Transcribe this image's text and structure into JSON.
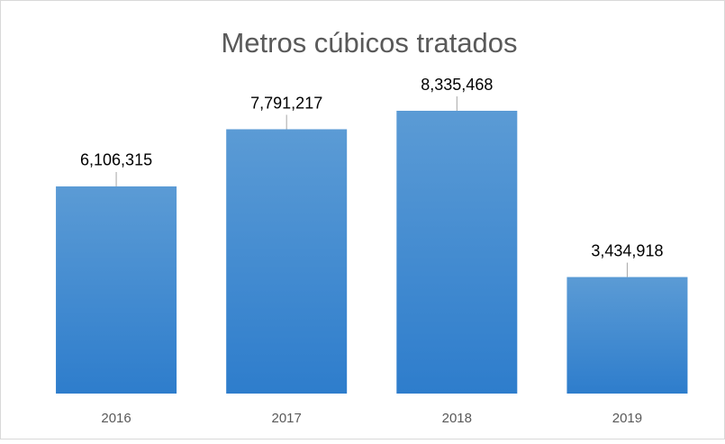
{
  "chart_data": {
    "type": "bar",
    "title": "Metros cúbicos tratados",
    "categories": [
      "2016",
      "2017",
      "2018",
      "2019"
    ],
    "values": [
      6106315,
      7791217,
      8335468,
      3434918
    ],
    "value_labels": [
      "6,106,315",
      "7,791,217",
      "8,335,468",
      "3,434,918"
    ],
    "color": "#4a8fd4"
  }
}
